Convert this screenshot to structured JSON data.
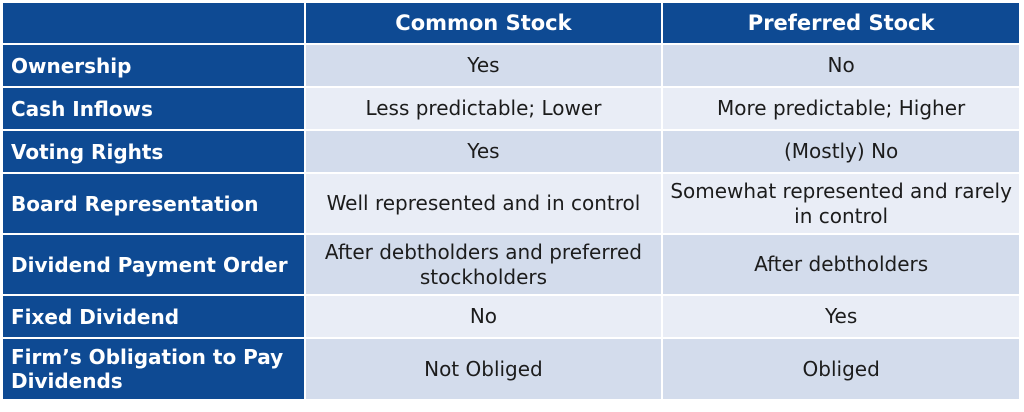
{
  "table": {
    "headers": [
      "",
      "Common Stock",
      "Preferred Stock"
    ],
    "rows": [
      {
        "label": "Ownership",
        "common": "Yes",
        "preferred": "No"
      },
      {
        "label": "Cash Inflows",
        "common": "Less predictable; Lower",
        "preferred": "More predictable; Higher"
      },
      {
        "label": "Voting Rights",
        "common": "Yes",
        "preferred": "(Mostly) No"
      },
      {
        "label": "Board Representation",
        "common": "Well represented and in control",
        "preferred": "Somewhat represented and rarely in control"
      },
      {
        "label": "Dividend Payment Order",
        "common": "After debtholders and preferred stockholders",
        "preferred": "After debtholders"
      },
      {
        "label": "Fixed Dividend",
        "common": "No",
        "preferred": "Yes"
      },
      {
        "label": "Firm’s Obligation to Pay Dividends",
        "common": "Not Obliged",
        "preferred": "Obliged"
      }
    ]
  },
  "colors": {
    "header_bg": "#0e4a93",
    "header_text": "#ffffff",
    "row_odd_bg": "#d3dcec",
    "row_even_bg": "#e9edf6"
  }
}
